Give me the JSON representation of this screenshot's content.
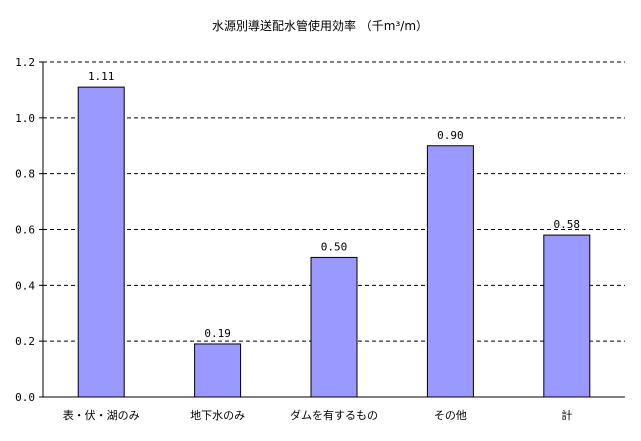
{
  "chart_data": {
    "type": "bar",
    "title": "水源別導送配水管使用効率 （千m³/m）",
    "categories": [
      "表・伏・湖のみ",
      "地下水のみ",
      "ダムを有するもの",
      "その他",
      "計"
    ],
    "values": [
      1.11,
      0.19,
      0.5,
      0.9,
      0.58
    ],
    "data_labels": [
      "1.11",
      "0.19",
      "0.50",
      "0.90",
      "0.58"
    ],
    "y_ticks": [
      "0.0",
      "0.2",
      "0.4",
      "0.6",
      "0.8",
      "1.0",
      "1.2"
    ],
    "ylim": [
      0,
      1.2
    ],
    "xlabel": "",
    "ylabel": "",
    "grid": "dashed-horizontal",
    "legend": "none",
    "colors": {
      "bar_fill": "#9999ff",
      "bar_stroke": "#000000",
      "grid": "#000000",
      "axis": "#000000"
    }
  }
}
